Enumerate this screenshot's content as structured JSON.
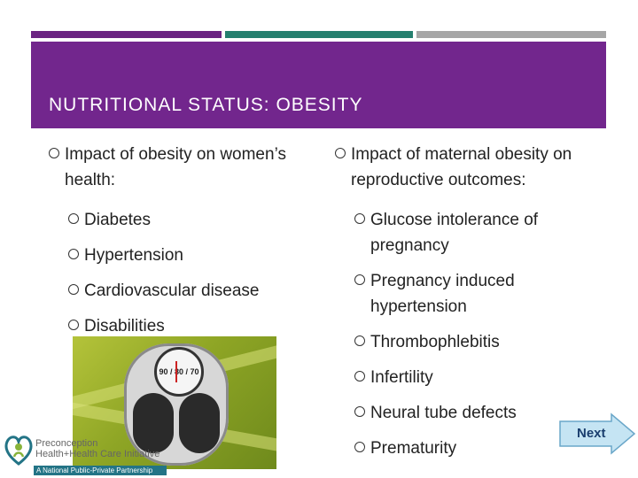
{
  "slide": {
    "title": "NUTRITIONAL STATUS: OBESITY",
    "left_column": {
      "heading": "Impact of obesity on women’s health:",
      "items": [
        "Diabetes",
        "Hypertension",
        "Cardiovascular disease",
        "Disabilities"
      ]
    },
    "right_column": {
      "heading": "Impact of maternal obesity on reproductive outcomes:",
      "items": [
        "Glucose intolerance of pregnancy",
        "Pregnancy induced hypertension",
        "Thrombophlebitis",
        "Infertility",
        "Neural tube defects",
        "Prematurity"
      ]
    }
  },
  "image": {
    "dial_numbers": "90 / 80 / 70"
  },
  "logo": {
    "line1": "Preconception",
    "line2": "Health+Health Care Initiative",
    "strip": "A National Public-Private Partnership"
  },
  "navigation": {
    "next_label": "Next"
  },
  "colors": {
    "title_band": "#72268d",
    "bar_purple": "#6b2482",
    "bar_teal": "#25806f",
    "bar_gray": "#a6a6a6",
    "next_button_fill": "#c5e4f3"
  }
}
